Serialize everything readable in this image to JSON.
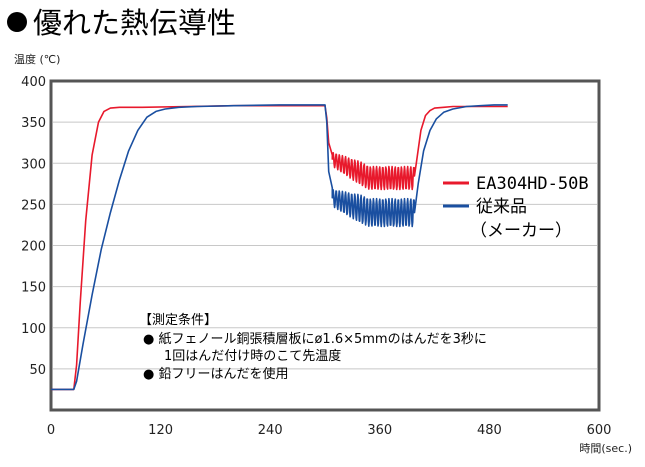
{
  "title": "優れた熱伝導性",
  "chart_data": {
    "type": "line",
    "title": "優れた熱伝導性",
    "ylabel": "温度 (℃)",
    "xlabel": "時間(sec.)",
    "xlim": [
      0,
      600
    ],
    "ylim": [
      0,
      400
    ],
    "xticks": [
      0,
      120,
      240,
      360,
      480,
      600
    ],
    "xtick_labels": [
      "0",
      "120",
      "240",
      "360",
      "480",
      "600"
    ],
    "yticks": [
      50,
      100,
      150,
      200,
      250,
      300,
      350,
      400
    ],
    "ytick_labels": [
      "50",
      "100",
      "150",
      "200",
      "250",
      "300",
      "350",
      "400"
    ],
    "grid": "horizontal",
    "legend_position": "right",
    "series": [
      {
        "name": "EA304HD-50B",
        "color": "#e8192c",
        "segments": [
          {
            "x": [
              0,
              25,
              28,
              32,
              38,
              45,
              52,
              58,
              65,
              75,
              100,
              150,
              200,
              250,
              300
            ],
            "y": [
              25,
              25,
              55,
              130,
              230,
              310,
              350,
              363,
              367,
              368,
              368,
              369,
              370,
              370,
              370
            ]
          },
          {
            "x": [
              300,
              302,
              304,
              308
            ],
            "y": [
              370,
              355,
              325,
              310
            ]
          },
          {
            "x": [
              398,
              400,
              405,
              410,
              415,
              420,
              430,
              440,
              460,
              480,
              500
            ],
            "y": [
              285,
              300,
              340,
              358,
              364,
              367,
              368,
              369,
              369,
              369,
              369
            ]
          }
        ],
        "oscillation": {
          "x_start": 308,
          "x_end": 398,
          "center": [
            305,
            282
          ],
          "amplitude": 14,
          "period": 3.4
        }
      },
      {
        "name": "従来品\n(メーカー)",
        "legend_lines": [
          "従来品",
          "（メーカー）"
        ],
        "color": "#1a4fa0",
        "segments": [
          {
            "x": [
              0,
              25,
              28,
              35,
              45,
              55,
              65,
              75,
              85,
              95,
              105,
              115,
              125,
              140,
              160,
              200,
              250,
              300
            ],
            "y": [
              25,
              25,
              35,
              80,
              140,
              195,
              240,
              280,
              315,
              340,
              356,
              363,
              366,
              368,
              369,
              370,
              371,
              371
            ]
          },
          {
            "x": [
              300,
              302,
              304,
              308
            ],
            "y": [
              371,
              350,
              290,
              270
            ]
          },
          {
            "x": [
              398,
              402,
              408,
              415,
              422,
              430,
              440,
              455,
              470,
              485,
              500
            ],
            "y": [
              240,
              275,
              315,
              340,
              354,
              362,
              366,
              369,
              370,
              371,
              371
            ]
          }
        ],
        "oscillation": {
          "x_start": 308,
          "x_end": 398,
          "center": [
            258,
            240
          ],
          "amplitude": 17,
          "period": 3.4
        }
      }
    ],
    "annotation": {
      "heading": "【測定条件】",
      "lines": [
        "● 紙フェノール銅張積層板にø1.6×5mmのはんだを3秒に",
        "1回はんだ付け時のこて先温度",
        "● 鉛フリーはんだを使用"
      ]
    }
  }
}
